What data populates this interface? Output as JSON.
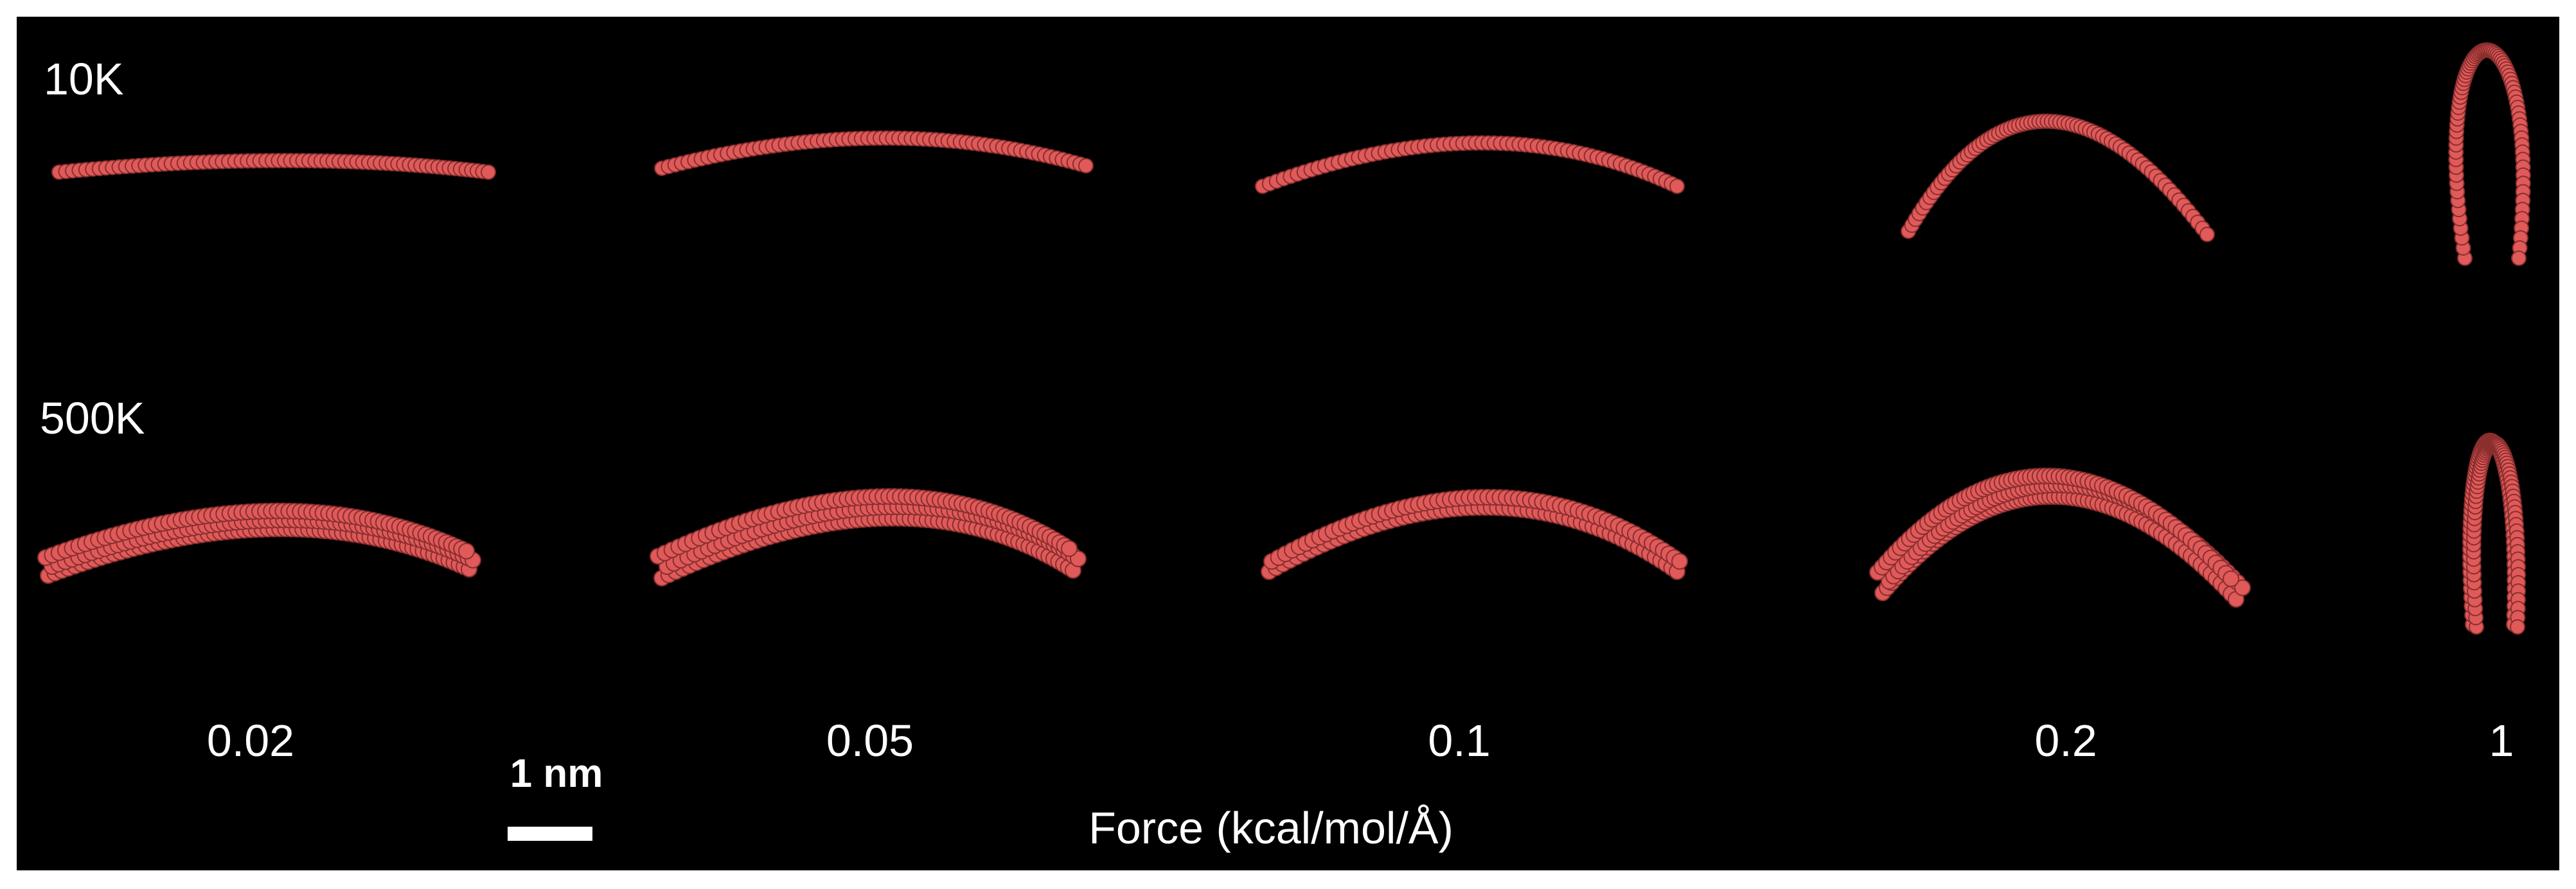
{
  "row_labels": {
    "low_temperature": "10K",
    "high_temperature": "500K"
  },
  "force_values": [
    "0.02",
    "0.05",
    "0.1",
    "0.2",
    "1"
  ],
  "axis_title": "Force (kcal/mol/Å)",
  "scale_bar": {
    "label": "1 nm"
  },
  "colors": {
    "background": "#000000",
    "bead": "#e05a5a",
    "bead_shadow": "#8a2e2e",
    "bead_highlight": "#f08a8a",
    "text": "#ffffff"
  }
}
